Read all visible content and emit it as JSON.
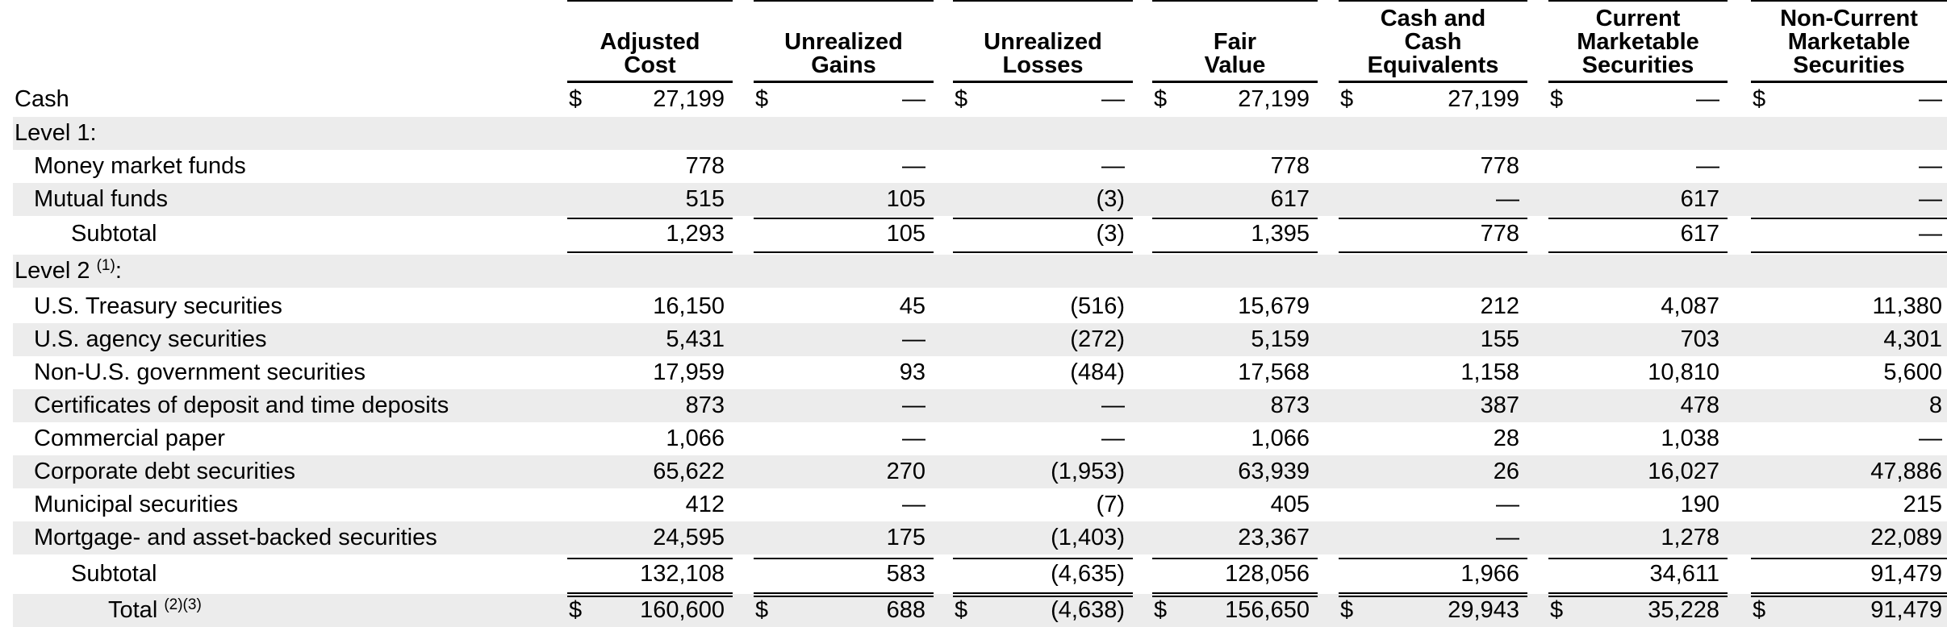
{
  "columns": [
    {
      "lines": [
        "Adjusted",
        "Cost"
      ]
    },
    {
      "lines": [
        "Unrealized",
        "Gains"
      ]
    },
    {
      "lines": [
        "Unrealized",
        "Losses"
      ]
    },
    {
      "lines": [
        "Fair",
        "Value"
      ]
    },
    {
      "lines": [
        "Cash and",
        "Cash",
        "Equivalents"
      ]
    },
    {
      "lines": [
        "Current",
        "Marketable",
        "Securities"
      ]
    },
    {
      "lines": [
        "Non-Current",
        "Marketable",
        "Securities"
      ]
    }
  ],
  "rows": [
    {
      "label": "Cash",
      "indent": 0,
      "dollar": true,
      "values": [
        "27,199",
        "—",
        "—",
        "27,199",
        "27,199",
        "—",
        "—"
      ]
    },
    {
      "label": "Level 1:",
      "indent": 0,
      "values": []
    },
    {
      "label": "Money market funds",
      "indent": 1,
      "values": [
        "778",
        "—",
        "—",
        "778",
        "778",
        "—",
        "—"
      ]
    },
    {
      "label": "Mutual funds",
      "indent": 1,
      "values": [
        "515",
        "105",
        "(3)",
        "617",
        "—",
        "617",
        "—"
      ]
    },
    {
      "label": "Subtotal",
      "indent": 2,
      "values": [
        "1,293",
        "105",
        "(3)",
        "1,395",
        "778",
        "617",
        "—"
      ]
    },
    {
      "label": "Level 2",
      "sup": "(1)",
      "suffix": ":",
      "indent": 0,
      "values": []
    },
    {
      "label": "U.S. Treasury securities",
      "indent": 1,
      "values": [
        "16,150",
        "45",
        "(516)",
        "15,679",
        "212",
        "4,087",
        "11,380"
      ]
    },
    {
      "label": "U.S. agency securities",
      "indent": 1,
      "values": [
        "5,431",
        "—",
        "(272)",
        "5,159",
        "155",
        "703",
        "4,301"
      ]
    },
    {
      "label": "Non-U.S. government securities",
      "indent": 1,
      "values": [
        "17,959",
        "93",
        "(484)",
        "17,568",
        "1,158",
        "10,810",
        "5,600"
      ]
    },
    {
      "label": "Certificates of deposit and time deposits",
      "indent": 1,
      "values": [
        "873",
        "—",
        "—",
        "873",
        "387",
        "478",
        "8"
      ]
    },
    {
      "label": "Commercial paper",
      "indent": 1,
      "values": [
        "1,066",
        "—",
        "—",
        "1,066",
        "28",
        "1,038",
        "—"
      ]
    },
    {
      "label": "Corporate debt securities",
      "indent": 1,
      "values": [
        "65,622",
        "270",
        "(1,953)",
        "63,939",
        "26",
        "16,027",
        "47,886"
      ]
    },
    {
      "label": "Municipal securities",
      "indent": 1,
      "values": [
        "412",
        "—",
        "(7)",
        "405",
        "—",
        "190",
        "215"
      ]
    },
    {
      "label": "Mortgage- and asset-backed securities",
      "indent": 1,
      "values": [
        "24,595",
        "175",
        "(1,403)",
        "23,367",
        "—",
        "1,278",
        "22,089"
      ]
    },
    {
      "label": "Subtotal",
      "indent": 2,
      "values": [
        "132,108",
        "583",
        "(4,635)",
        "128,056",
        "1,966",
        "34,611",
        "91,479"
      ]
    },
    {
      "label": "Total",
      "sup": "(2)(3)",
      "indent": 3,
      "dollar": true,
      "values": [
        "160,600",
        "688",
        "(4,638)",
        "156,650",
        "29,943",
        "35,228",
        "91,479"
      ]
    }
  ],
  "currency_symbol": "$"
}
